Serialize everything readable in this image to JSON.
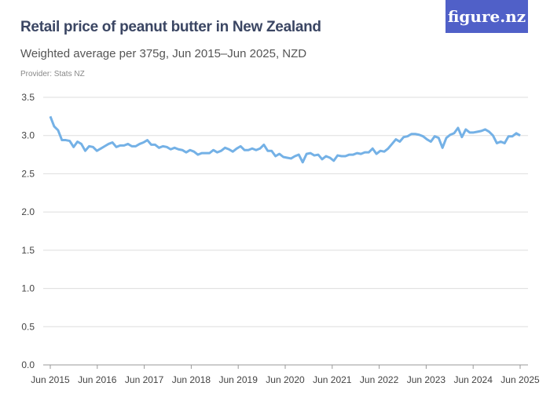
{
  "title": "Retail price of peanut butter in New Zealand",
  "subtitle": "Weighted average per 375g, Jun 2015–Jun 2025, NZD",
  "provider": "Provider: Stats NZ",
  "logo": "figure.nz",
  "colors": {
    "line": "#74b1e6",
    "logo_bg": "#5060c8",
    "title": "#3b4663"
  },
  "chart_data": {
    "type": "line",
    "title": "Retail price of peanut butter in New Zealand",
    "xlabel": "",
    "ylabel": "",
    "ylim": [
      0,
      3.5
    ],
    "yticks": [
      "0.0",
      "0.5",
      "1.0",
      "1.5",
      "2.0",
      "2.5",
      "3.0",
      "3.5"
    ],
    "xticks": [
      "Jun 2015",
      "Jun 2016",
      "Jun 2017",
      "Jun 2018",
      "Jun 2019",
      "Jun 2020",
      "Jun 2021",
      "Jun 2022",
      "Jun 2023",
      "Jun 2024",
      "Jun 2025"
    ],
    "x_start": "Jun 2015",
    "x_end": "Jun 2025",
    "frequency": "monthly",
    "grid": true,
    "values": [
      3.25,
      3.12,
      3.07,
      2.94,
      2.94,
      2.93,
      2.85,
      2.92,
      2.89,
      2.8,
      2.86,
      2.85,
      2.8,
      2.83,
      2.86,
      2.89,
      2.91,
      2.85,
      2.87,
      2.87,
      2.89,
      2.86,
      2.86,
      2.89,
      2.91,
      2.94,
      2.88,
      2.88,
      2.84,
      2.86,
      2.85,
      2.82,
      2.84,
      2.82,
      2.81,
      2.78,
      2.81,
      2.79,
      2.75,
      2.77,
      2.77,
      2.77,
      2.81,
      2.78,
      2.8,
      2.84,
      2.82,
      2.79,
      2.83,
      2.86,
      2.81,
      2.81,
      2.83,
      2.81,
      2.83,
      2.88,
      2.8,
      2.8,
      2.73,
      2.76,
      2.72,
      2.71,
      2.7,
      2.73,
      2.75,
      2.65,
      2.76,
      2.77,
      2.74,
      2.75,
      2.69,
      2.73,
      2.71,
      2.67,
      2.74,
      2.73,
      2.73,
      2.75,
      2.75,
      2.77,
      2.76,
      2.78,
      2.78,
      2.83,
      2.76,
      2.8,
      2.79,
      2.83,
      2.89,
      2.95,
      2.92,
      2.98,
      2.99,
      3.02,
      3.02,
      3.01,
      2.99,
      2.95,
      2.92,
      2.99,
      2.97,
      2.84,
      2.97,
      3.01,
      3.03,
      3.1,
      2.98,
      3.08,
      3.04,
      3.04,
      3.05,
      3.06,
      3.08,
      3.05,
      3.0,
      2.9,
      2.92,
      2.9,
      2.99,
      2.99,
      3.03,
      3.0
    ]
  }
}
